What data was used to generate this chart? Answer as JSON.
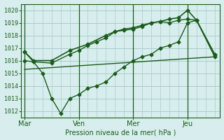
{
  "background_color": "#d8eeee",
  "grid_color": "#a8ccc8",
  "line_color": "#1a5c1a",
  "tick_label_color": "#1a5c1a",
  "xlabel": "Pression niveau de la mer( hPa )",
  "ylim": [
    1011.5,
    1020.5
  ],
  "yticks": [
    1012,
    1013,
    1014,
    1015,
    1016,
    1017,
    1018,
    1019,
    1020
  ],
  "xlim": [
    -0.2,
    10.8
  ],
  "day_labels": [
    "Mar",
    "Ven",
    "Mer",
    "Jeu"
  ],
  "day_positions": [
    0,
    3,
    6,
    9
  ],
  "trend_x": [
    0.0,
    10.5
  ],
  "trend_y": [
    1015.3,
    1016.3
  ],
  "series_lower_x": [
    0.0,
    0.5,
    1.0,
    1.5,
    2.0,
    2.5,
    3.0,
    3.5,
    4.0,
    4.5,
    5.0,
    5.5,
    6.0,
    6.5,
    7.0,
    7.5,
    8.0,
    8.5,
    9.0,
    9.5,
    10.5
  ],
  "series_lower_y": [
    1016.7,
    1015.9,
    1015.0,
    1013.0,
    1011.8,
    1013.0,
    1013.3,
    1013.8,
    1014.0,
    1014.3,
    1015.0,
    1015.5,
    1016.0,
    1016.3,
    1016.5,
    1017.0,
    1017.2,
    1017.5,
    1019.0,
    1019.2,
    1016.3
  ],
  "series_mid_x": [
    0.0,
    0.5,
    1.5,
    2.5,
    3.0,
    3.5,
    4.0,
    4.5,
    5.0,
    5.5,
    6.0,
    6.5,
    7.0,
    7.5,
    8.0,
    8.5,
    9.0,
    9.5,
    10.5
  ],
  "series_mid_y": [
    1016.0,
    1015.9,
    1015.8,
    1016.5,
    1016.8,
    1017.2,
    1017.5,
    1017.8,
    1018.3,
    1018.4,
    1018.5,
    1018.7,
    1019.0,
    1019.1,
    1019.0,
    1019.2,
    1019.3,
    1019.2,
    1016.5
  ],
  "series_top_x": [
    0.0,
    0.5,
    1.5,
    2.5,
    3.5,
    4.5,
    5.0,
    5.5,
    6.0,
    6.5,
    7.0,
    7.5,
    8.0,
    8.5,
    9.0,
    9.5,
    10.5
  ],
  "series_top_y": [
    1016.7,
    1016.0,
    1016.0,
    1016.8,
    1017.3,
    1018.0,
    1018.3,
    1018.5,
    1018.6,
    1018.8,
    1019.0,
    1019.1,
    1019.3,
    1019.4,
    1020.0,
    1019.2,
    1016.5
  ]
}
